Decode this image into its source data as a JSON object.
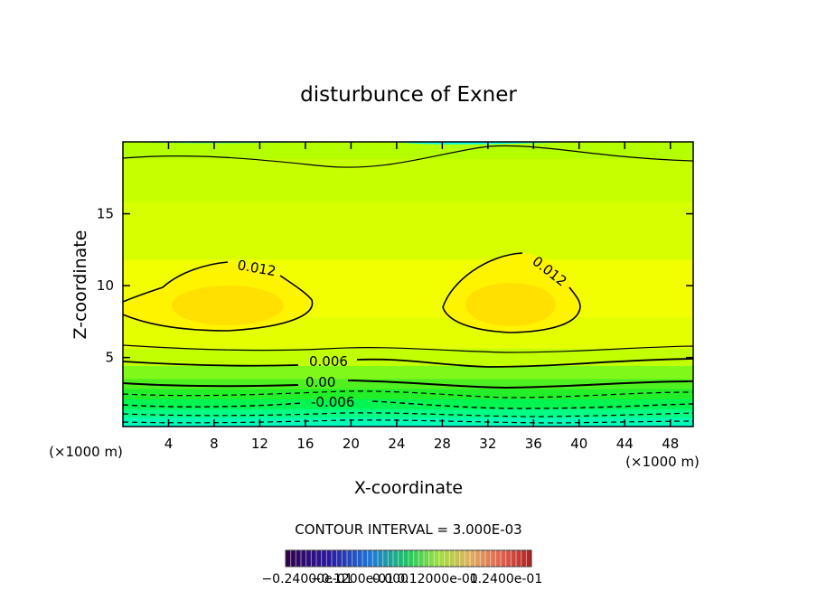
{
  "chart_data": {
    "type": "contour",
    "title": "disturbunce of Exner",
    "xlabel": "X-coordinate",
    "ylabel": "Z-coordinate",
    "x_unit_left": "(×1000 m)",
    "x_unit_right": "(×1000 m)",
    "xlim": [
      0,
      50
    ],
    "ylim": [
      0.2,
      20
    ],
    "xticks": [
      4,
      8,
      12,
      16,
      20,
      24,
      28,
      32,
      36,
      40,
      44,
      48
    ],
    "yticks": [
      5,
      10,
      15
    ],
    "contour_interval_text": "CONTOUR INTERVAL =  3.000E-03",
    "contour_labels": [
      "0.012",
      "0.012",
      "0.006",
      "0.00",
      "-0.006"
    ],
    "colorbar": {
      "tick_labels": [
        "−0.24000e-01",
        "−0.1200e-01",
        "0.000",
        "0.12000e-01",
        "0.2400e-01"
      ],
      "range": [
        -0.024,
        0.024
      ]
    },
    "bands": [
      {
        "z": 0.5,
        "value": -0.012,
        "color": "#00ffe0"
      },
      {
        "z": 1.0,
        "value": -0.009,
        "color": "#00ffb4"
      },
      {
        "z": 1.6,
        "value": -0.006,
        "color": "#00ff84"
      },
      {
        "z": 2.3,
        "value": -0.003,
        "color": "#00f550"
      },
      {
        "z": 3.0,
        "value": 0.0,
        "color": "#22ef28"
      },
      {
        "z": 3.7,
        "value": 0.003,
        "color": "#50f020"
      },
      {
        "z": 4.6,
        "value": 0.006,
        "color": "#80f81a"
      },
      {
        "z": 5.8,
        "value": 0.009,
        "color": "#c2ff00"
      },
      {
        "z": 8.0,
        "value": 0.012,
        "color": "#e4ff00"
      },
      {
        "z": 12.0,
        "value": 0.012,
        "color": "#f2ff00"
      },
      {
        "z": 16.0,
        "value": 0.009,
        "color": "#d8ff00"
      },
      {
        "z": 19.0,
        "value": 0.006,
        "color": "#c6ff00"
      },
      {
        "z": 20.0,
        "value": 0.003,
        "color": "#b4ff00"
      }
    ],
    "max_regions": [
      {
        "cx": 10,
        "cz": 8.5,
        "value": 0.015,
        "color": "#ffe600"
      },
      {
        "cx": 34,
        "cz": 8.5,
        "value": 0.015,
        "color": "#ffe600"
      }
    ]
  }
}
